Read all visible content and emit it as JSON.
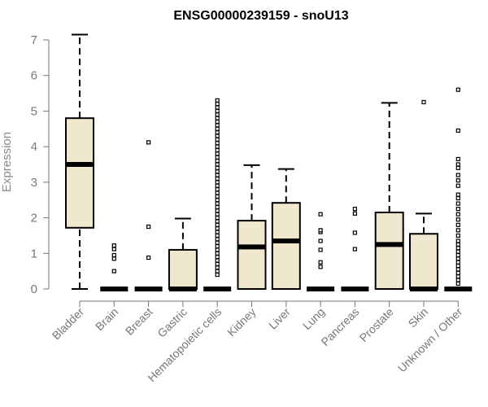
{
  "chart_data": {
    "type": "boxplot",
    "title": "ENSG00000239159 - snoU13",
    "ylabel": "Expression",
    "xlabel": "",
    "ylim": [
      0,
      7.2
    ],
    "yticks": [
      0,
      1,
      2,
      3,
      4,
      5,
      6,
      7
    ],
    "box_fill": "#efe7ce",
    "categories": [
      "Bladder",
      "Brain",
      "Breast",
      "Gastric",
      "Hematopoietic cells",
      "Kidney",
      "Liver",
      "Lung",
      "Pancreas",
      "Prostate",
      "Skin",
      "Unknown / Other"
    ],
    "boxes": [
      {
        "q1": 1.72,
        "median": 3.5,
        "q3": 4.8,
        "whisker_low": 0,
        "whisker_high": 7.15,
        "outliers": []
      },
      {
        "q1": 0,
        "median": 0,
        "q3": 0,
        "whisker_low": 0,
        "whisker_high": 0,
        "outliers": [
          0.5,
          0.85,
          0.95,
          1.12,
          1.22
        ]
      },
      {
        "q1": 0,
        "median": 0,
        "q3": 0,
        "whisker_low": 0,
        "whisker_high": 0,
        "outliers": [
          0.88,
          1.75,
          4.12
        ]
      },
      {
        "q1": 0,
        "median": 0,
        "q3": 1.1,
        "whisker_low": 0,
        "whisker_high": 1.98,
        "outliers": []
      },
      {
        "q1": 0,
        "median": 0,
        "q3": 0,
        "whisker_low": 0,
        "whisker_high": 0,
        "outliers": [
          0.4,
          0.5,
          0.6,
          0.7,
          0.8,
          0.9,
          1.0,
          1.1,
          1.2,
          1.3,
          1.4,
          1.5,
          1.6,
          1.7,
          1.8,
          1.9,
          2.0,
          2.1,
          2.2,
          2.3,
          2.4,
          2.5,
          2.6,
          2.7,
          2.8,
          2.9,
          3.0,
          3.1,
          3.2,
          3.3,
          3.4,
          3.5,
          3.6,
          3.7,
          3.8,
          3.9,
          4.0,
          4.1,
          4.2,
          4.3,
          4.4,
          4.5,
          4.6,
          4.7,
          4.8,
          4.9,
          5.0,
          5.1,
          5.2,
          5.3
        ]
      },
      {
        "q1": 0,
        "median": 1.18,
        "q3": 1.92,
        "whisker_low": 0,
        "whisker_high": 3.48,
        "outliers": []
      },
      {
        "q1": 0,
        "median": 1.35,
        "q3": 2.42,
        "whisker_low": 0,
        "whisker_high": 3.37,
        "outliers": []
      },
      {
        "q1": 0,
        "median": 0,
        "q3": 0,
        "whisker_low": 0,
        "whisker_high": 0,
        "outliers": [
          0.62,
          0.75,
          1.1,
          1.35,
          1.6,
          1.65,
          2.1
        ]
      },
      {
        "q1": 0,
        "median": 0,
        "q3": 0,
        "whisker_low": 0,
        "whisker_high": 0,
        "outliers": [
          1.12,
          1.58,
          2.12,
          2.25
        ]
      },
      {
        "q1": 0,
        "median": 1.25,
        "q3": 2.15,
        "whisker_low": 0,
        "whisker_high": 5.23,
        "outliers": []
      },
      {
        "q1": 0,
        "median": 0,
        "q3": 1.55,
        "whisker_low": 0,
        "whisker_high": 2.12,
        "outliers": [
          5.25
        ]
      },
      {
        "q1": 0,
        "median": 0,
        "q3": 0,
        "whisker_low": 0,
        "whisker_high": 0,
        "outliers": [
          0.15,
          0.25,
          0.35,
          0.45,
          0.55,
          0.65,
          0.75,
          0.85,
          0.95,
          1.05,
          1.15,
          1.25,
          1.35,
          1.5,
          1.65,
          1.8,
          1.95,
          2.1,
          2.25,
          2.4,
          2.55,
          2.65,
          2.9,
          3.05,
          3.2,
          3.4,
          3.5,
          3.65,
          4.45,
          5.6
        ]
      }
    ]
  }
}
